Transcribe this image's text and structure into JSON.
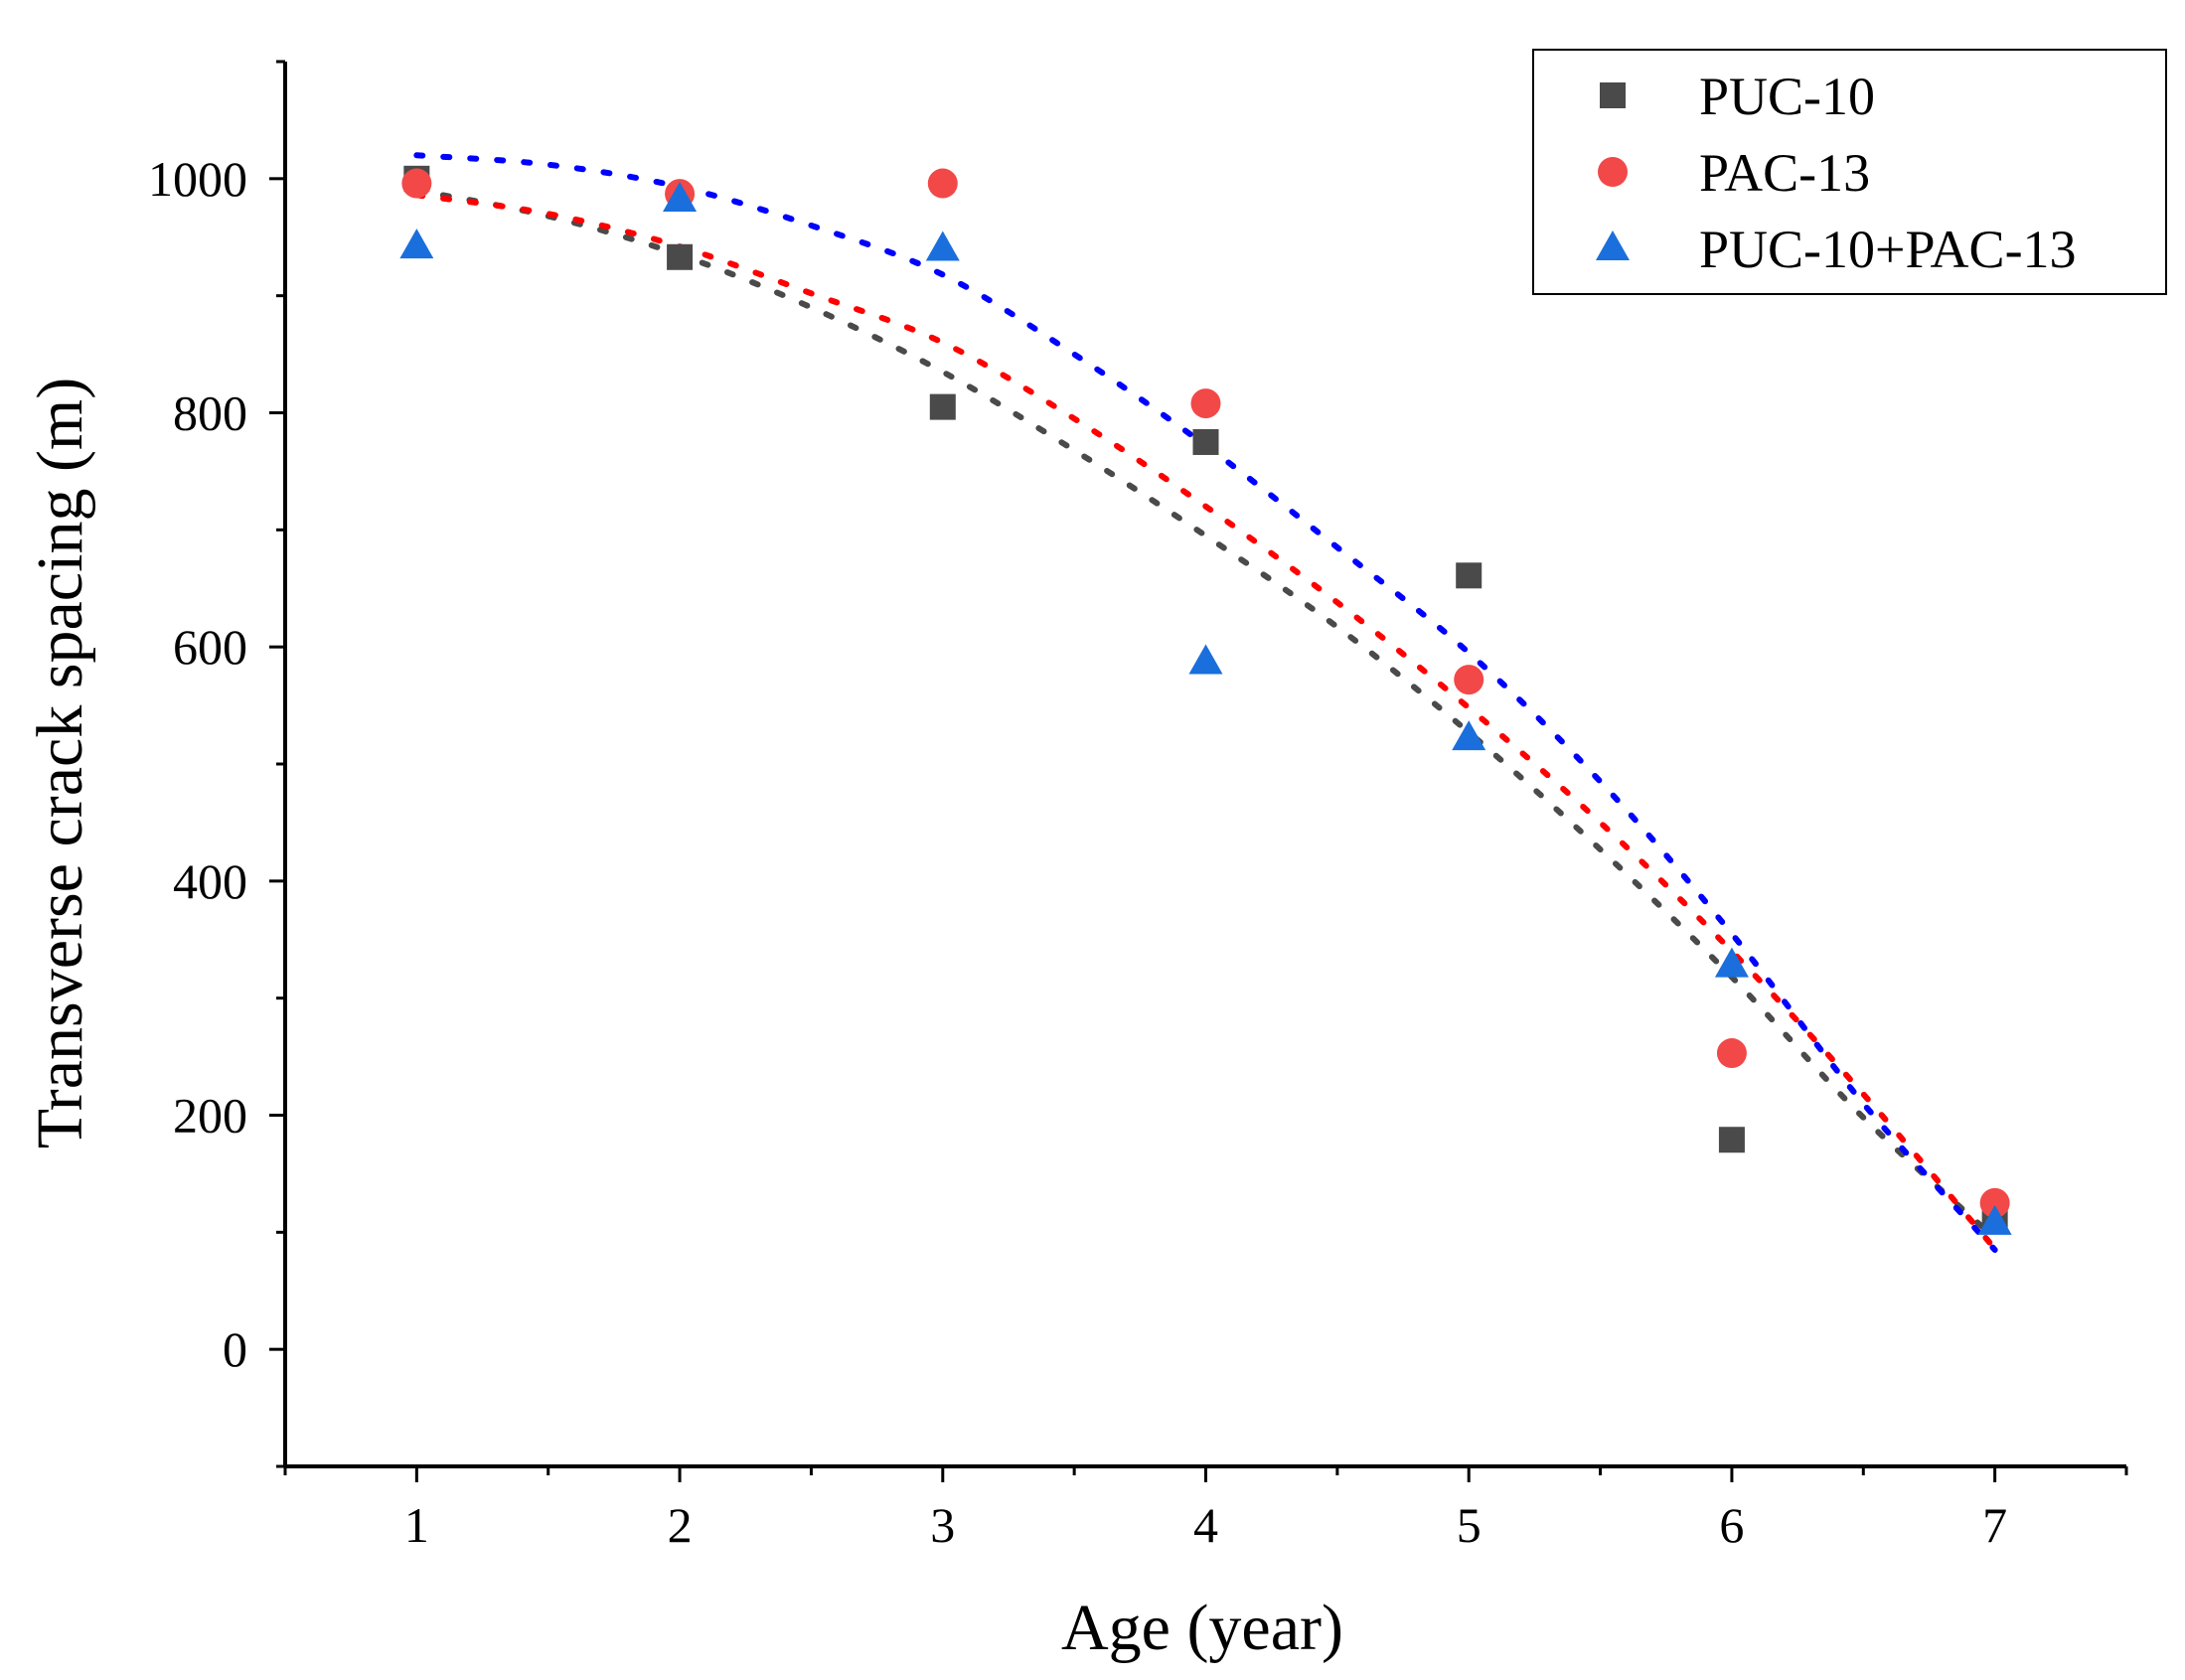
{
  "chart_data": {
    "type": "scatter",
    "xlabel": "Age (year)",
    "ylabel": "Transverse crack spacing (m)",
    "xlim": [
      0.5,
      7.5
    ],
    "ylim": [
      -100,
      1100
    ],
    "xticks": [
      1,
      2,
      3,
      4,
      5,
      6,
      7
    ],
    "yticks": [
      0,
      200,
      400,
      600,
      800,
      1000
    ],
    "grid": false,
    "legend_position": "top-right",
    "series": [
      {
        "name": "PUC-10",
        "marker": "square",
        "color": "#4a4a4a",
        "trend_color": "#4a4a4a",
        "x": [
          1,
          2,
          3,
          4,
          5,
          6,
          7
        ],
        "y": [
          1000,
          933,
          805,
          775,
          661,
          179,
          112
        ],
        "trendline": {
          "type": "dotted",
          "x": [
            1,
            1.5,
            2,
            2.5,
            3,
            3.5,
            4,
            4.5,
            5,
            5.5,
            6,
            6.5,
            7
          ],
          "y": [
            990,
            968,
            935,
            890,
            835,
            768,
            695,
            617,
            527,
            427,
            318,
            198,
            95
          ]
        }
      },
      {
        "name": "PAC-13",
        "marker": "circle",
        "color": "#f24848",
        "trend_color": "#ff0000",
        "x": [
          1,
          2,
          3,
          4,
          5,
          6,
          7
        ],
        "y": [
          996,
          987,
          996,
          808,
          572,
          253,
          125
        ],
        "trendline": {
          "type": "dotted",
          "x": [
            1,
            1.5,
            2,
            2.5,
            3,
            3.5,
            4,
            4.5,
            5,
            5.5,
            6,
            6.5,
            7
          ],
          "y": [
            986,
            970,
            942,
            902,
            860,
            795,
            720,
            638,
            548,
            450,
            340,
            218,
            86
          ]
        }
      },
      {
        "name": "PUC-10+PAC-13",
        "marker": "triangle",
        "color": "#1a6fdc",
        "trend_color": "#0000ff",
        "x": [
          1,
          2,
          3,
          4,
          5,
          6,
          7
        ],
        "y": [
          942,
          982,
          940,
          587,
          522,
          328,
          108
        ],
        "trendline": {
          "type": "dotted",
          "x": [
            1,
            1.5,
            2,
            2.5,
            3,
            3.5,
            4,
            4.5,
            5,
            5.5,
            6,
            6.5,
            7
          ],
          "y": [
            1020,
            1012,
            993,
            960,
            918,
            850,
            772,
            685,
            595,
            485,
            355,
            210,
            85
          ]
        }
      }
    ]
  }
}
